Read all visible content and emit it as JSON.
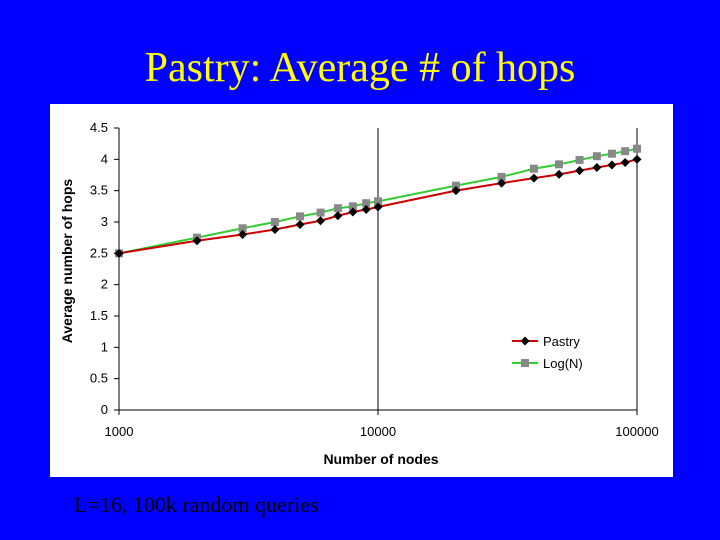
{
  "title": "Pastry: Average # of hops",
  "caption": "L=16, 100k random queries",
  "colors": {
    "background": "#0000ff",
    "title": "#ffff00",
    "pastry": "#cc0000",
    "pastry_marker": "#000000",
    "logn": "#33cc33",
    "logn_marker": "#888888"
  },
  "chart_data": {
    "type": "line",
    "xlabel": "Number of nodes",
    "ylabel": "Average number of hops",
    "xscale": "log",
    "xlim": [
      1000,
      100000
    ],
    "ylim": [
      0,
      4.5
    ],
    "xticks": [
      1000,
      10000,
      100000
    ],
    "xtick_labels": [
      "1000",
      "10000",
      "100000"
    ],
    "yticks": [
      0,
      0.5,
      1,
      1.5,
      2,
      2.5,
      3,
      3.5,
      4,
      4.5
    ],
    "ytick_labels": [
      "0",
      "0.5",
      "1",
      "1.5",
      "2",
      "2.5",
      "3",
      "3.5",
      "4",
      "4.5"
    ],
    "grid": false,
    "legend_position": "bottom-right",
    "series": [
      {
        "name": "Pastry",
        "marker": "diamond",
        "x": [
          1000,
          2000,
          3000,
          4000,
          5000,
          6000,
          7000,
          8000,
          9000,
          10000,
          20000,
          30000,
          40000,
          50000,
          60000,
          70000,
          80000,
          90000,
          100000
        ],
        "y": [
          2.5,
          2.7,
          2.8,
          2.88,
          2.96,
          3.02,
          3.1,
          3.16,
          3.2,
          3.24,
          3.5,
          3.62,
          3.7,
          3.76,
          3.82,
          3.87,
          3.91,
          3.95,
          4.0
        ]
      },
      {
        "name": "Log(N)",
        "marker": "square",
        "x": [
          1000,
          2000,
          3000,
          4000,
          5000,
          6000,
          7000,
          8000,
          9000,
          10000,
          20000,
          30000,
          40000,
          50000,
          60000,
          70000,
          80000,
          90000,
          100000
        ],
        "y": [
          2.5,
          2.75,
          2.9,
          3.0,
          3.09,
          3.15,
          3.22,
          3.25,
          3.3,
          3.33,
          3.58,
          3.72,
          3.85,
          3.92,
          3.99,
          4.05,
          4.09,
          4.13,
          4.17
        ]
      }
    ]
  }
}
